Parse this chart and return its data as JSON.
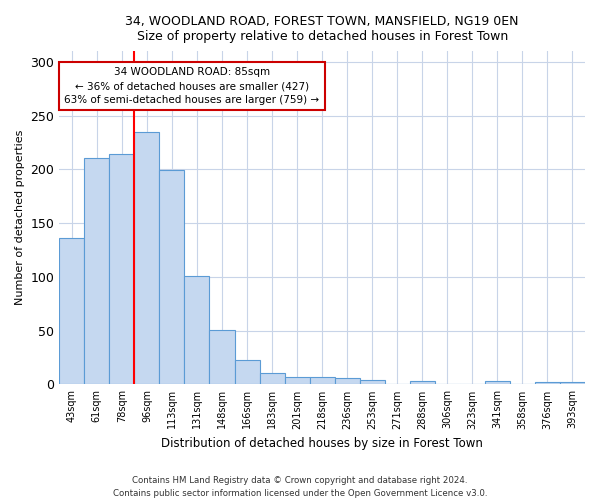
{
  "title_line1": "34, WOODLAND ROAD, FOREST TOWN, MANSFIELD, NG19 0EN",
  "title_line2": "Size of property relative to detached houses in Forest Town",
  "xlabel": "Distribution of detached houses by size in Forest Town",
  "ylabel": "Number of detached properties",
  "categories": [
    "43sqm",
    "61sqm",
    "78sqm",
    "96sqm",
    "113sqm",
    "131sqm",
    "148sqm",
    "166sqm",
    "183sqm",
    "201sqm",
    "218sqm",
    "236sqm",
    "253sqm",
    "271sqm",
    "288sqm",
    "306sqm",
    "323sqm",
    "341sqm",
    "358sqm",
    "376sqm",
    "393sqm"
  ],
  "values": [
    136,
    211,
    214,
    235,
    199,
    101,
    51,
    23,
    11,
    7,
    7,
    6,
    4,
    0,
    3,
    0,
    0,
    3,
    0,
    2,
    2
  ],
  "bar_color": "#c5d8f0",
  "bar_edge_color": "#5b9bd5",
  "red_line_x": 2.5,
  "annotation_text": "34 WOODLAND ROAD: 85sqm\n← 36% of detached houses are smaller (427)\n63% of semi-detached houses are larger (759) →",
  "annotation_box_color": "#ffffff",
  "annotation_box_edge": "#cc0000",
  "ylim": [
    0,
    310
  ],
  "yticks": [
    0,
    50,
    100,
    150,
    200,
    250,
    300
  ],
  "footer_line1": "Contains HM Land Registry data © Crown copyright and database right 2024.",
  "footer_line2": "Contains public sector information licensed under the Open Government Licence v3.0.",
  "bg_color": "#ffffff",
  "grid_color": "#c8d4e8"
}
